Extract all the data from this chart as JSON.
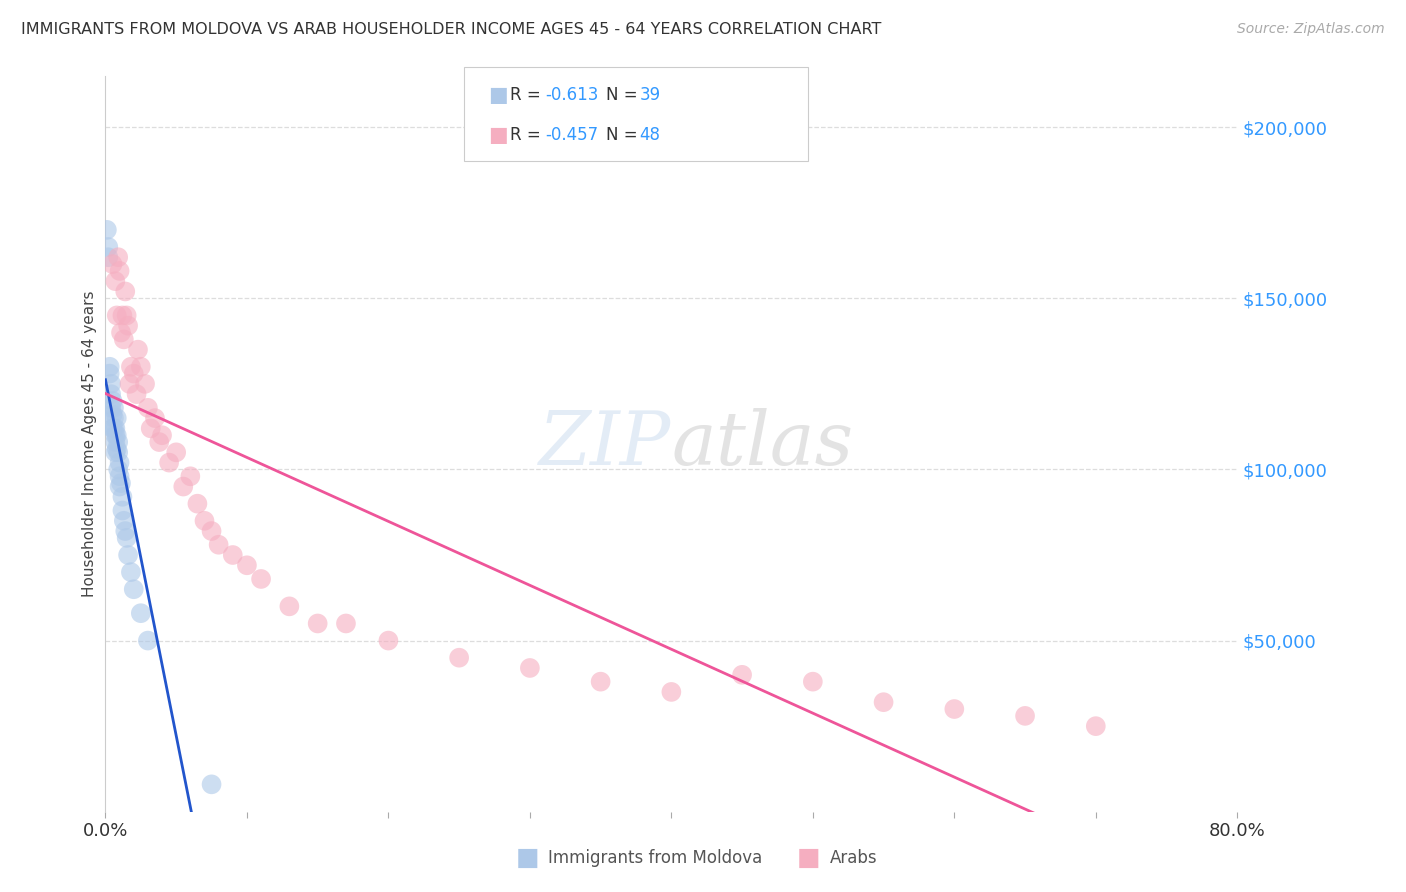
{
  "title": "IMMIGRANTS FROM MOLDOVA VS ARAB HOUSEHOLDER INCOME AGES 45 - 64 YEARS CORRELATION CHART",
  "source": "Source: ZipAtlas.com",
  "ylabel": "Householder Income Ages 45 - 64 years",
  "ytick_labels": [
    "$50,000",
    "$100,000",
    "$150,000",
    "$200,000"
  ],
  "ytick_values": [
    50000,
    100000,
    150000,
    200000
  ],
  "ylim": [
    0,
    215000
  ],
  "xlim": [
    0.0,
    0.8
  ],
  "moldova_color": "#adc8e8",
  "arab_color": "#f5aec0",
  "moldova_line_color": "#2255cc",
  "arab_line_color": "#ee5599",
  "background_color": "#ffffff",
  "grid_color": "#dddddd",
  "moldova_points_x": [
    0.001,
    0.002,
    0.002,
    0.003,
    0.003,
    0.004,
    0.004,
    0.004,
    0.005,
    0.005,
    0.005,
    0.006,
    0.006,
    0.006,
    0.007,
    0.007,
    0.007,
    0.007,
    0.008,
    0.008,
    0.008,
    0.009,
    0.009,
    0.009,
    0.01,
    0.01,
    0.01,
    0.011,
    0.012,
    0.012,
    0.013,
    0.014,
    0.015,
    0.016,
    0.018,
    0.02,
    0.025,
    0.03,
    0.075
  ],
  "moldova_points_y": [
    170000,
    165000,
    162000,
    130000,
    128000,
    125000,
    122000,
    118000,
    120000,
    116000,
    112000,
    118000,
    115000,
    112000,
    112000,
    110000,
    108000,
    105000,
    115000,
    110000,
    106000,
    108000,
    105000,
    100000,
    102000,
    98000,
    95000,
    96000,
    92000,
    88000,
    85000,
    82000,
    80000,
    75000,
    70000,
    65000,
    58000,
    50000,
    8000
  ],
  "arab_points_x": [
    0.005,
    0.007,
    0.008,
    0.009,
    0.01,
    0.011,
    0.012,
    0.013,
    0.014,
    0.015,
    0.016,
    0.017,
    0.018,
    0.02,
    0.022,
    0.023,
    0.025,
    0.028,
    0.03,
    0.032,
    0.035,
    0.038,
    0.04,
    0.045,
    0.05,
    0.055,
    0.06,
    0.065,
    0.07,
    0.075,
    0.08,
    0.09,
    0.1,
    0.11,
    0.13,
    0.15,
    0.17,
    0.2,
    0.25,
    0.3,
    0.35,
    0.4,
    0.45,
    0.5,
    0.55,
    0.6,
    0.65,
    0.7
  ],
  "arab_points_y": [
    160000,
    155000,
    145000,
    162000,
    158000,
    140000,
    145000,
    138000,
    152000,
    145000,
    142000,
    125000,
    130000,
    128000,
    122000,
    135000,
    130000,
    125000,
    118000,
    112000,
    115000,
    108000,
    110000,
    102000,
    105000,
    95000,
    98000,
    90000,
    85000,
    82000,
    78000,
    75000,
    72000,
    68000,
    60000,
    55000,
    55000,
    50000,
    45000,
    42000,
    38000,
    35000,
    40000,
    38000,
    32000,
    30000,
    28000,
    25000
  ]
}
